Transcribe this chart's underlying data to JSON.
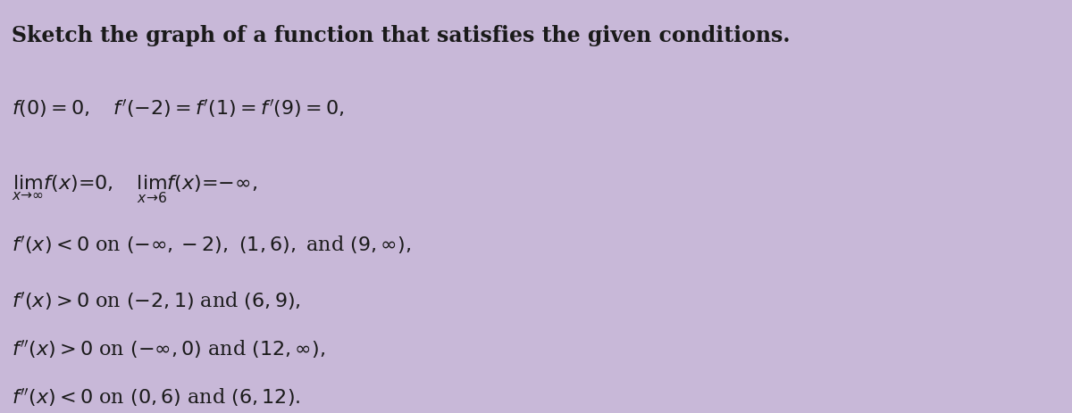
{
  "title_line": "Sketch the graph of a function that satisfies the given conditions.",
  "conditions": [
    "f(0) = 0,  f′(−2) = f′(1) = f′(9) = 0,",
    "lim f(x) = 0,  lim f(x) = −∞,",
    "f′(x) < 0 on (−∞,−2), (1,6),  and (9, ∞),",
    "f′(x) > 0 on (−2, 1) and (6, 9),",
    "f″(x) > 0 on (−∞, 0) and (12, ∞),",
    "f″(x) < 0 on (0, 6) and (6, 12)."
  ],
  "lim1_sub": "x→∞",
  "lim2_sub": "x→6",
  "background_color": "#c8b8d8",
  "text_color": "#1a1a1a",
  "title_fontsize": 17,
  "body_fontsize": 16,
  "fig_width": 12.0,
  "fig_height": 4.63
}
